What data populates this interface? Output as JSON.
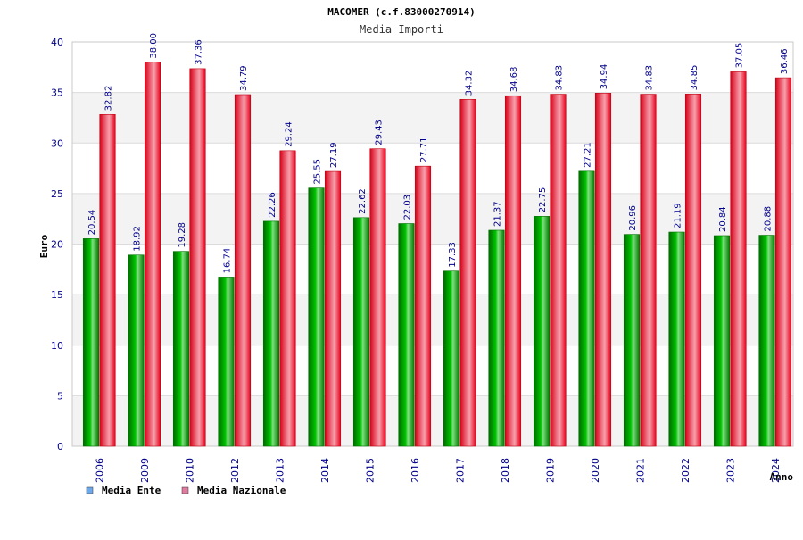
{
  "chart_data": {
    "type": "bar",
    "title": "MACOMER (c.f.83000270914)",
    "subtitle": "Media Importi",
    "xlabel": "Anno",
    "ylabel": "Euro",
    "ylim": [
      0,
      40
    ],
    "yticks": [
      0,
      5,
      10,
      15,
      20,
      25,
      30,
      35,
      40
    ],
    "grid": true,
    "legend_position": "bottom-left",
    "categories": [
      "2006",
      "2009",
      "2010",
      "2012",
      "2013",
      "2014",
      "2015",
      "2016",
      "2017",
      "2018",
      "2019",
      "2020",
      "2021",
      "2022",
      "2023",
      "2024"
    ],
    "series": [
      {
        "name": "Media Ente",
        "color": "#00b000",
        "legend_color": "#6fa8e8",
        "values": [
          20.54,
          18.92,
          19.28,
          16.74,
          22.26,
          25.55,
          22.62,
          22.03,
          17.33,
          21.37,
          22.75,
          27.21,
          20.96,
          21.19,
          20.84,
          20.88
        ],
        "labels": [
          "20.54",
          "18.92",
          "19.28",
          "16.74",
          "22.26",
          "25.55",
          "22.62",
          "22.03",
          "17.33",
          "21.37",
          "22.75",
          "27.21",
          "20.96",
          "21.19",
          "20.84",
          "20.88"
        ]
      },
      {
        "name": "Media Nazionale",
        "color": "#e8001c",
        "legend_color": "#e07aa0",
        "values": [
          32.82,
          38.0,
          37.36,
          34.79,
          29.24,
          27.19,
          29.43,
          27.71,
          34.32,
          34.68,
          34.83,
          34.94,
          34.83,
          34.85,
          37.05,
          36.46
        ],
        "labels": [
          "32.82",
          "38.00",
          "37.36",
          "34.79",
          "29.24",
          "27.19",
          "29.43",
          "27.71",
          "34.32",
          "34.68",
          "34.83",
          "34.94",
          "34.83",
          "34.85",
          "37.05",
          "36.46"
        ]
      }
    ]
  }
}
